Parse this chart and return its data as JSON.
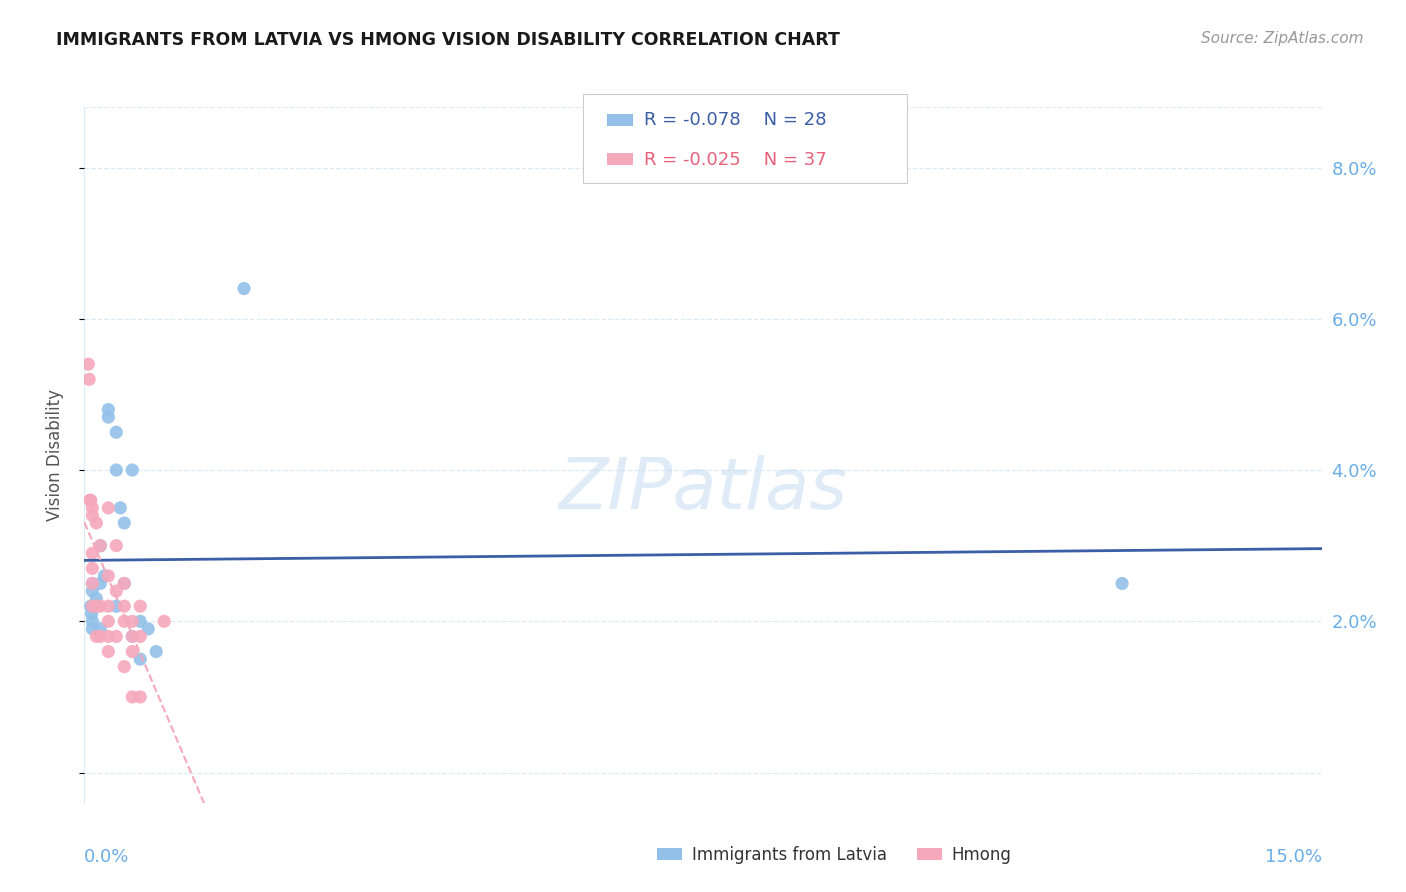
{
  "title": "IMMIGRANTS FROM LATVIA VS HMONG VISION DISABILITY CORRELATION CHART",
  "source": "Source: ZipAtlas.com",
  "ylabel": "Vision Disability",
  "watermark": "ZIPatlas",
  "legend_r1": "R = -0.078",
  "legend_n1": "N = 28",
  "legend_r2": "R = -0.025",
  "legend_n2": "N = 37",
  "blue_scatter_color": "#92C0E8",
  "pink_scatter_color": "#F5A8BC",
  "blue_line_color": "#3B5EA6",
  "pink_line_color": "#F5A8BC",
  "axis_tick_color": "#6AAEE8",
  "grid_color": "#DAEAF7",
  "background": "#FFFFFF",
  "xlim": [
    0.0,
    0.155
  ],
  "ylim": [
    -0.004,
    0.088
  ],
  "yticks": [
    0.0,
    0.02,
    0.04,
    0.06,
    0.08
  ],
  "ytick_labels": [
    "",
    "2.0%",
    "4.0%",
    "6.0%",
    "8.0%"
  ],
  "latvia_x": [
    0.0008,
    0.0009,
    0.001,
    0.001,
    0.001,
    0.001,
    0.001,
    0.0015,
    0.002,
    0.002,
    0.002,
    0.0025,
    0.003,
    0.003,
    0.004,
    0.004,
    0.004,
    0.0045,
    0.005,
    0.005,
    0.006,
    0.006,
    0.007,
    0.007,
    0.008,
    0.009,
    0.02,
    0.13
  ],
  "latvia_y": [
    0.022,
    0.021,
    0.025,
    0.024,
    0.022,
    0.02,
    0.019,
    0.023,
    0.03,
    0.025,
    0.019,
    0.026,
    0.048,
    0.047,
    0.045,
    0.04,
    0.022,
    0.035,
    0.033,
    0.025,
    0.04,
    0.018,
    0.02,
    0.015,
    0.019,
    0.016,
    0.064,
    0.025
  ],
  "hmong_x": [
    0.0005,
    0.0006,
    0.0007,
    0.0008,
    0.001,
    0.001,
    0.001,
    0.001,
    0.001,
    0.001,
    0.0015,
    0.0015,
    0.0015,
    0.002,
    0.002,
    0.002,
    0.003,
    0.003,
    0.003,
    0.003,
    0.003,
    0.003,
    0.004,
    0.004,
    0.004,
    0.005,
    0.005,
    0.005,
    0.005,
    0.006,
    0.006,
    0.006,
    0.006,
    0.007,
    0.007,
    0.007,
    0.01
  ],
  "hmong_y": [
    0.054,
    0.052,
    0.036,
    0.036,
    0.035,
    0.034,
    0.029,
    0.027,
    0.025,
    0.022,
    0.033,
    0.022,
    0.018,
    0.03,
    0.022,
    0.018,
    0.035,
    0.026,
    0.022,
    0.02,
    0.018,
    0.016,
    0.03,
    0.024,
    0.018,
    0.025,
    0.022,
    0.02,
    0.014,
    0.02,
    0.018,
    0.016,
    0.01,
    0.022,
    0.018,
    0.01,
    0.02
  ]
}
